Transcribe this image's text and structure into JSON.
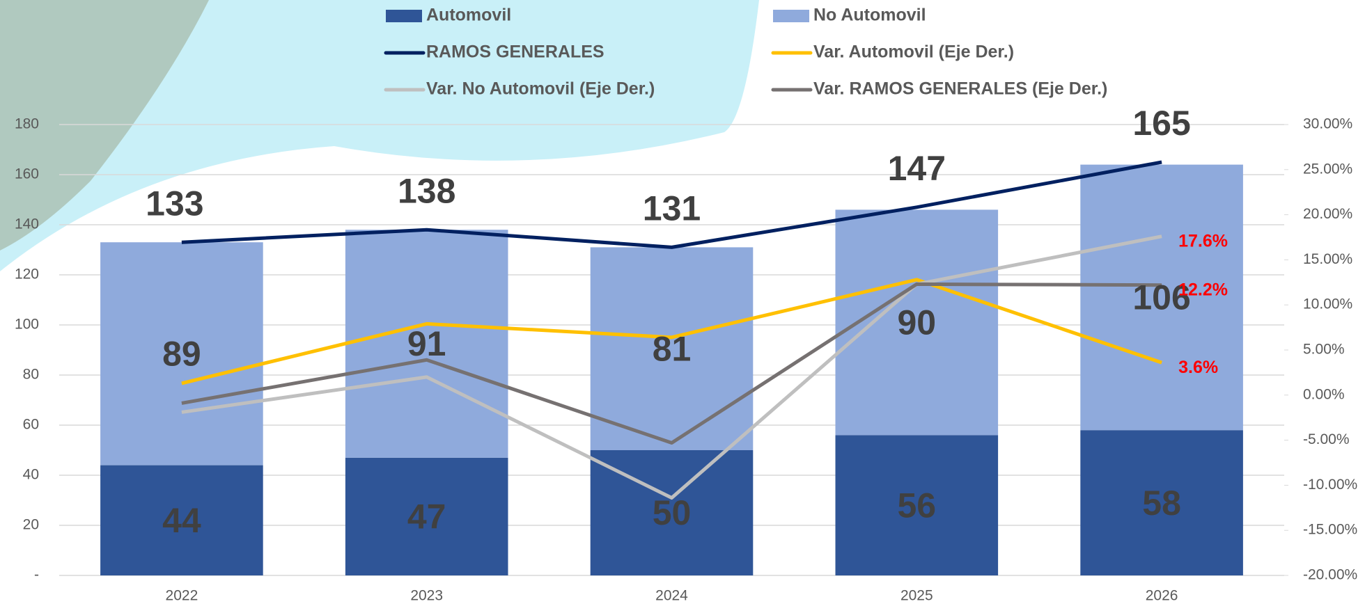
{
  "chart_data": {
    "type": "bar",
    "stacked": true,
    "categories": [
      "2022",
      "2023",
      "2024",
      "2025",
      "2026"
    ],
    "series": [
      {
        "name": "Automovil",
        "type": "bar",
        "color": "#2f5597",
        "values": [
          44,
          47,
          50,
          56,
          58
        ]
      },
      {
        "name": "No Automovil",
        "type": "bar",
        "color": "#8faadc",
        "values": [
          89,
          91,
          81,
          90,
          106
        ]
      },
      {
        "name": "RAMOS GENERALES",
        "type": "line",
        "color": "#002060",
        "values": [
          133,
          138,
          131,
          147,
          165
        ]
      },
      {
        "name": "Var. Automovil (Eje Der.)",
        "type": "line",
        "axis": "y2",
        "color": "#ffc000",
        "values": [
          1.3,
          7.9,
          6.4,
          12.8,
          3.6
        ],
        "value_labels": [
          null,
          null,
          null,
          null,
          "3.6%"
        ]
      },
      {
        "name": "Var. No Automovil (Eje Der.)",
        "type": "line",
        "axis": "y2",
        "color": "#bfbfbf",
        "values": [
          -1.9,
          2.0,
          -11.4,
          12.3,
          17.6
        ],
        "value_labels": [
          null,
          null,
          null,
          null,
          "17.6%"
        ]
      },
      {
        "name": "Var. RAMOS GENERALES (Eje Der.)",
        "type": "line",
        "axis": "y2",
        "color": "#767171",
        "values": [
          -0.9,
          3.9,
          -5.3,
          12.3,
          12.2
        ],
        "value_labels": [
          null,
          null,
          null,
          null,
          "12.2%"
        ]
      }
    ],
    "ylim": [
      0,
      180
    ],
    "yticks": [
      {
        "value": 0,
        "label": "-"
      },
      20,
      40,
      60,
      80,
      100,
      120,
      140,
      160,
      180
    ],
    "y2lim": [
      -20,
      30
    ],
    "y2ticks": [
      {
        "value": -20,
        "label": "-20.00%"
      },
      {
        "value": -15,
        "label": "-15.00%"
      },
      {
        "value": -10,
        "label": "-10.00%"
      },
      {
        "value": -5,
        "label": "-5.00%"
      },
      {
        "value": 0,
        "label": "0.00%"
      },
      {
        "value": 5,
        "label": "5.00%"
      },
      {
        "value": 10,
        "label": "10.00%"
      },
      {
        "value": 15,
        "label": "15.00%"
      },
      {
        "value": 20,
        "label": "20.00%"
      },
      {
        "value": 25,
        "label": "25.00%"
      },
      {
        "value": 30,
        "label": "30.00%"
      }
    ],
    "grid": true
  }
}
